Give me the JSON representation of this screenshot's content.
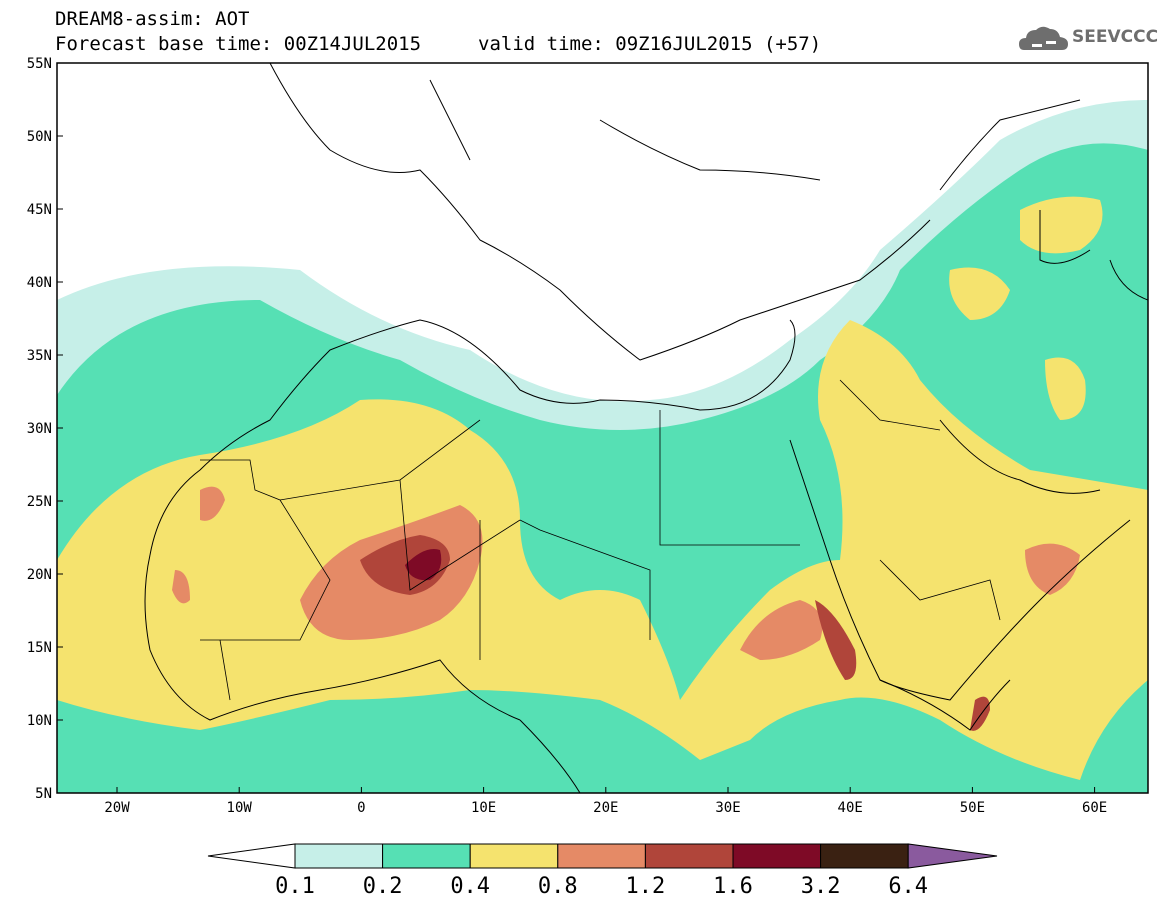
{
  "header": {
    "title": "DREAM8-assim: AOT",
    "base_time": "Forecast base time: 00Z14JUL2015",
    "valid_time": "valid time: 09Z16JUL2015 (+57)",
    "logo_text": "SEEVCCC"
  },
  "axes": {
    "lat_labels": [
      "55N",
      "50N",
      "45N",
      "40N",
      "35N",
      "30N",
      "25N",
      "20N",
      "15N",
      "10N",
      "5N"
    ],
    "lon_labels": [
      "20W",
      "10W",
      "0",
      "10E",
      "20E",
      "30E",
      "40E",
      "50E",
      "60E"
    ]
  },
  "legend": {
    "labels": [
      "0.1",
      "0.2",
      "0.4",
      "0.8",
      "1.2",
      "1.6",
      "3.2",
      "6.4"
    ],
    "colors": [
      "#ffffff",
      "#c6efe8",
      "#56e0b4",
      "#f5e36e",
      "#e58a66",
      "#b0453a",
      "#7e0a26",
      "#3a2112",
      "#8a5a9e"
    ]
  },
  "colors": {
    "aot_0_1": "#c6efe8",
    "aot_0_2": "#56e0b4",
    "aot_0_4": "#f5e36e",
    "aot_0_8": "#e58a66",
    "aot_1_2": "#b0453a",
    "aot_1_6": "#7e0a26"
  }
}
